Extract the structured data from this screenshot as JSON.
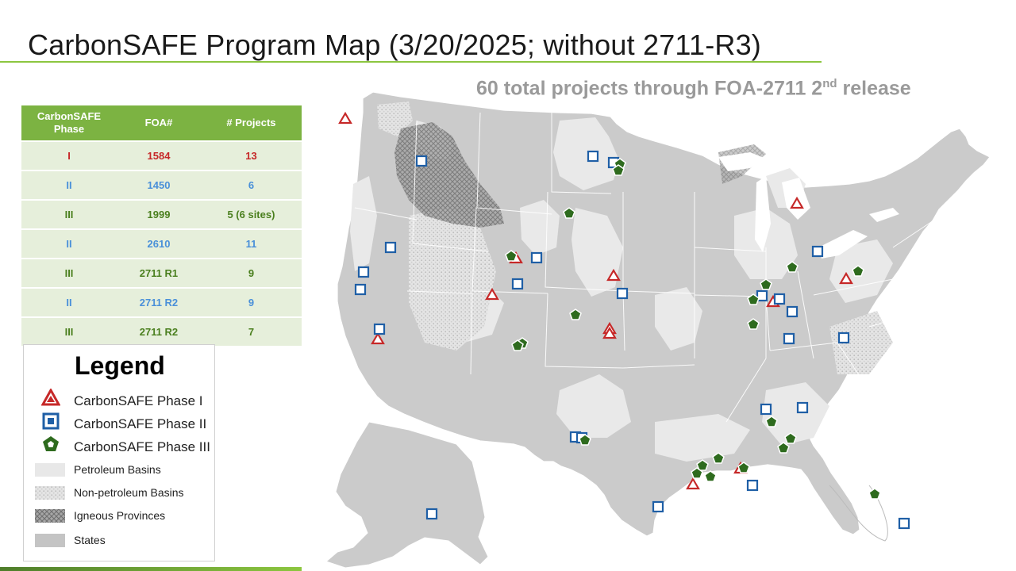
{
  "title": "CarbonSAFE Program Map (3/20/2025; without 2711-R3)",
  "subtitle": {
    "text": "60 total projects through FOA-2711 2",
    "sup": "nd",
    "tail": " release"
  },
  "table": {
    "headers": [
      "CarbonSAFE Phase",
      "FOA#",
      "# Projects"
    ],
    "rows": [
      {
        "phase": "I",
        "foa": "1584",
        "projects": "13",
        "color": "#c62828"
      },
      {
        "phase": "II",
        "foa": "1450",
        "projects": "6",
        "color": "#4a90d9"
      },
      {
        "phase": "III",
        "foa": "1999",
        "projects": "5 (6 sites)",
        "color": "#4a7f1e"
      },
      {
        "phase": "II",
        "foa": "2610",
        "projects": "11",
        "color": "#4a90d9"
      },
      {
        "phase": "III",
        "foa": "2711 R1",
        "projects": "9",
        "color": "#4a7f1e"
      },
      {
        "phase": "II",
        "foa": "2711 R2",
        "projects": "9",
        "color": "#4a90d9"
      },
      {
        "phase": "III",
        "foa": "2711 R2",
        "projects": "7",
        "color": "#4a7f1e"
      }
    ]
  },
  "legend": {
    "title": "Legend",
    "markers": [
      {
        "label": "CarbonSAFE Phase I",
        "icon": "triangle-icon",
        "color": "#c62828"
      },
      {
        "label": "CarbonSAFE Phase II",
        "icon": "square-icon",
        "color": "#1f5fa6"
      },
      {
        "label": "CarbonSAFE Phase III",
        "icon": "pentagon-icon",
        "color": "#2e6b1e"
      }
    ],
    "swatches": [
      {
        "label": "Petroleum Basins",
        "fill": "#e8e8e8"
      },
      {
        "label": "Non-petroleum Basins",
        "fill": "#e6e6e6",
        "pattern": "dots"
      },
      {
        "label": "Igneous Provinces",
        "fill": "#9e9e9e",
        "pattern": "crosshatch"
      },
      {
        "label": "States",
        "fill": "#c4c4c4"
      }
    ]
  },
  "colors": {
    "accent": "#8cc63f",
    "table_header": "#7cb342",
    "table_row": "#e6efdb",
    "subtitle": "#9a9a9a"
  }
}
